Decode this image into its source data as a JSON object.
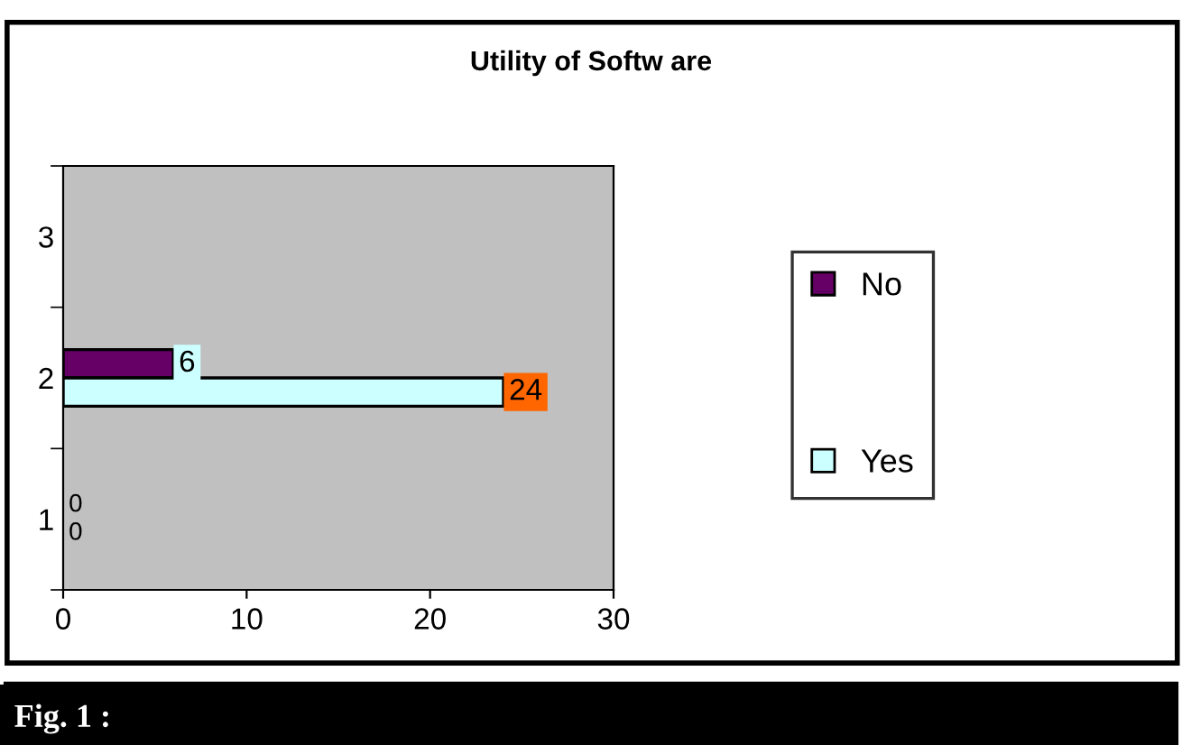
{
  "chart_data": {
    "type": "bar",
    "orientation": "horizontal",
    "title": "Utility of Softw are",
    "categories": [
      "3",
      "2",
      "1"
    ],
    "series": [
      {
        "name": "No",
        "color": "#660066",
        "values": [
          null,
          6,
          0
        ]
      },
      {
        "name": "Yes",
        "color": "#ccffff",
        "values": [
          null,
          24,
          0
        ]
      }
    ],
    "xlim": [
      0,
      30
    ],
    "xticks": [
      0,
      10,
      20,
      30
    ],
    "data_labels": true,
    "legend": "right",
    "grid": false,
    "annotations": [
      "Fig. 1 :"
    ]
  }
}
